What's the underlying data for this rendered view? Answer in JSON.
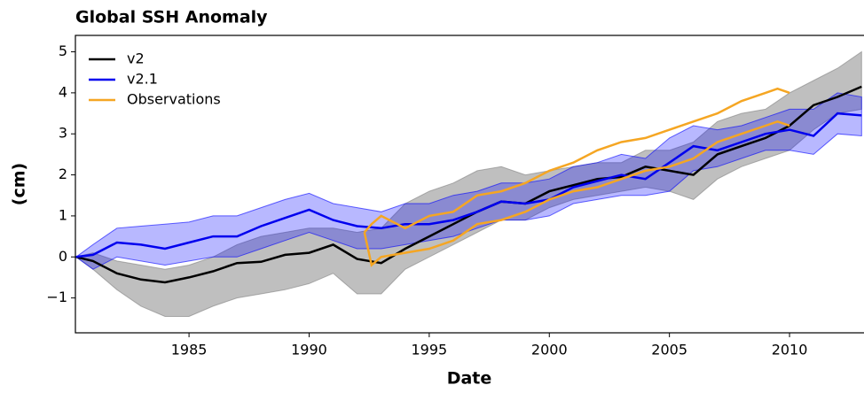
{
  "chart_data": {
    "type": "line",
    "title": "Global SSH Anomaly",
    "xlabel": "Date",
    "ylabel": "(cm)",
    "x": [
      1980.3,
      1981,
      1982,
      1983,
      1984,
      1985,
      1986,
      1987,
      1988,
      1989,
      1990,
      1991,
      1992,
      1993,
      1994,
      1995,
      1996,
      1997,
      1998,
      1999,
      2000,
      2001,
      2002,
      2003,
      2004,
      2005,
      2006,
      2007,
      2008,
      2009,
      2010,
      2011,
      2012,
      2013
    ],
    "series": [
      {
        "name": "v2",
        "color": "#000000",
        "band_color": "#808080",
        "values": [
          0,
          -0.1,
          -0.4,
          -0.55,
          -0.62,
          -0.5,
          -0.35,
          -0.15,
          -0.12,
          0.05,
          0.1,
          0.3,
          -0.05,
          -0.15,
          0.2,
          0.5,
          0.8,
          1.1,
          1.35,
          1.3,
          1.6,
          1.75,
          1.9,
          1.95,
          2.2,
          2.1,
          2.0,
          2.5,
          2.7,
          2.9,
          3.2,
          3.7,
          3.9,
          4.15
        ],
        "lower": [
          0,
          -0.3,
          -0.8,
          -1.2,
          -1.45,
          -1.45,
          -1.2,
          -1.0,
          -0.9,
          -0.8,
          -0.65,
          -0.4,
          -0.9,
          -0.9,
          -0.3,
          0.0,
          0.3,
          0.6,
          0.9,
          0.9,
          1.2,
          1.4,
          1.5,
          1.6,
          1.7,
          1.6,
          1.4,
          1.9,
          2.2,
          2.4,
          2.6,
          3.1,
          3.5,
          3.6
        ],
        "upper": [
          0,
          0.1,
          -0.1,
          -0.2,
          -0.3,
          -0.2,
          0.0,
          0.3,
          0.5,
          0.6,
          0.7,
          0.7,
          0.6,
          0.7,
          1.3,
          1.6,
          1.8,
          2.1,
          2.2,
          2.0,
          2.1,
          2.2,
          2.3,
          2.3,
          2.6,
          2.6,
          2.8,
          3.3,
          3.5,
          3.6,
          4.0,
          4.3,
          4.6,
          5.0
        ]
      },
      {
        "name": "v2.1",
        "color": "#0000ee",
        "band_color": "#0000ff",
        "values": [
          0,
          0.05,
          0.35,
          0.3,
          0.2,
          0.35,
          0.5,
          0.5,
          0.75,
          0.95,
          1.15,
          0.9,
          0.75,
          0.7,
          0.8,
          0.8,
          0.9,
          1.1,
          1.35,
          1.3,
          1.4,
          1.7,
          1.85,
          2.0,
          1.9,
          2.3,
          2.7,
          2.6,
          2.8,
          3.0,
          3.1,
          2.95,
          3.5,
          3.45
        ],
        "lower": [
          0,
          -0.3,
          0.0,
          -0.1,
          -0.2,
          -0.1,
          0.0,
          0.0,
          0.2,
          0.4,
          0.6,
          0.4,
          0.2,
          0.2,
          0.3,
          0.4,
          0.5,
          0.7,
          0.9,
          0.9,
          1.0,
          1.3,
          1.4,
          1.5,
          1.5,
          1.6,
          2.1,
          2.2,
          2.4,
          2.6,
          2.6,
          2.5,
          3.0,
          2.95
        ],
        "upper": [
          0,
          0.3,
          0.7,
          0.75,
          0.8,
          0.85,
          1.0,
          1.0,
          1.2,
          1.4,
          1.55,
          1.3,
          1.2,
          1.1,
          1.3,
          1.3,
          1.5,
          1.6,
          1.8,
          1.8,
          1.9,
          2.2,
          2.3,
          2.5,
          2.4,
          2.9,
          3.2,
          3.1,
          3.2,
          3.4,
          3.6,
          3.6,
          4.0,
          3.9
        ]
      },
      {
        "name": "Observations",
        "color": "#f5a623",
        "x": [
          1992.3,
          1992.6,
          1993,
          1994,
          1995,
          1996,
          1997,
          1998,
          1999,
          2000,
          2001,
          2002,
          2003,
          2004,
          2005,
          2006,
          2007,
          2008,
          2009,
          2009.5,
          2010
        ],
        "lines": [
          [
            0.6,
            0.8,
            1.0,
            0.7,
            1.0,
            1.1,
            1.5,
            1.6,
            1.8,
            2.1,
            2.3,
            2.6,
            2.8,
            2.9,
            3.1,
            3.3,
            3.5,
            3.8,
            4.0,
            4.1,
            4.0
          ],
          [
            0.6,
            -0.2,
            0.0,
            0.1,
            0.2,
            0.4,
            0.8,
            0.9,
            1.1,
            1.4,
            1.6,
            1.7,
            1.9,
            2.1,
            2.2,
            2.4,
            2.8,
            3.0,
            3.2,
            3.3,
            3.2
          ]
        ]
      }
    ],
    "xlim": [
      1980.27,
      2013.1
    ],
    "xticks": [
      1985,
      1990,
      1995,
      2000,
      2005,
      2010
    ],
    "ylim": [
      -1.85,
      5.4
    ],
    "yticks": [
      {
        "value": -1,
        "label": "−1"
      },
      0,
      1,
      2,
      3,
      4,
      5
    ],
    "legend": "upper left"
  }
}
